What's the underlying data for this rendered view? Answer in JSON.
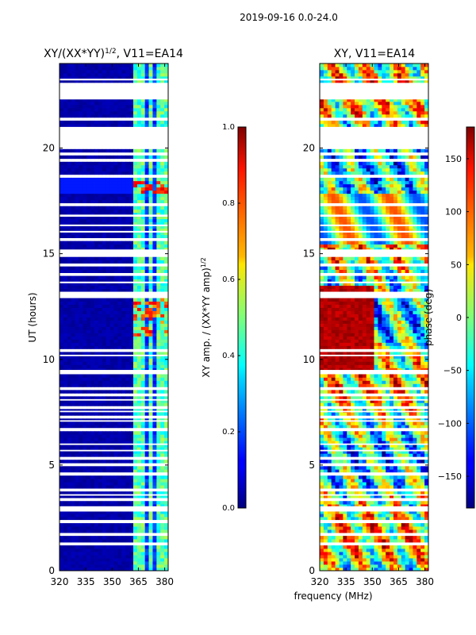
{
  "figure": {
    "suptitle": "2019-09-16 0.0-24.0",
    "shared_xlabel": "frequency (MHz)"
  },
  "chart_data": [
    {
      "type": "heatmap",
      "title_text": "XY/(XX*YY)",
      "title_sup": "1/2",
      "title_suffix": ", V11=EA14",
      "xlabel": "frequency (MHz)",
      "ylabel": "UT (hours)",
      "xlim": [
        320,
        382
      ],
      "ylim": [
        0,
        24
      ],
      "xticks": [
        320,
        335,
        350,
        365,
        380
      ],
      "yticks": [
        0,
        5,
        10,
        15,
        20
      ],
      "colorbar": {
        "label_text": "XY amp. / (XX*YY amp)",
        "label_sup": "1/2",
        "range": [
          0.0,
          1.0
        ],
        "ticks": [
          "0.0",
          "0.2",
          "0.4",
          "0.6",
          "0.8",
          "1.0"
        ],
        "colormap": "jet"
      }
    },
    {
      "type": "heatmap",
      "title_text": "XY, V11=EA14",
      "xlabel": "frequency (MHz)",
      "ylabel": "",
      "xlim": [
        320,
        382
      ],
      "ylim": [
        0,
        24
      ],
      "xticks": [
        320,
        335,
        350,
        365,
        380
      ],
      "yticks": [
        0,
        5,
        10,
        15,
        20
      ],
      "colorbar": {
        "label_text": "phase (deg)",
        "range": [
          -180,
          180
        ],
        "ticks": [
          "150",
          "100",
          "50",
          "0",
          "−50",
          "−100",
          "−150"
        ],
        "tick_values": [
          150,
          100,
          50,
          0,
          -50,
          -100,
          -150
        ],
        "colormap": "jet"
      }
    }
  ],
  "data_gaps_hours": [
    [
      1.2,
      1.3
    ],
    [
      1.65,
      1.75
    ],
    [
      2.3,
      2.4
    ],
    [
      2.8,
      3.05
    ],
    [
      3.3,
      3.38
    ],
    [
      3.55,
      3.62
    ],
    [
      3.8,
      3.87
    ],
    [
      4.55,
      4.65
    ],
    [
      4.95,
      5.05
    ],
    [
      5.3,
      5.37
    ],
    [
      5.65,
      5.72
    ],
    [
      5.95,
      6.02
    ],
    [
      6.65,
      6.75
    ],
    [
      7.05,
      7.12
    ],
    [
      7.25,
      7.32
    ],
    [
      7.5,
      7.57
    ],
    [
      7.7,
      7.77
    ],
    [
      8.05,
      8.12
    ],
    [
      8.3,
      8.37
    ],
    [
      8.6,
      8.67
    ],
    [
      9.3,
      9.5
    ],
    [
      10.15,
      10.22
    ],
    [
      10.4,
      10.47
    ],
    [
      12.9,
      13.0
    ],
    [
      13.1,
      13.2
    ],
    [
      13.6,
      13.68
    ],
    [
      14.0,
      14.08
    ],
    [
      14.4,
      14.48
    ],
    [
      14.85,
      14.95
    ],
    [
      15.0,
      15.2
    ],
    [
      15.65,
      15.73
    ],
    [
      16.0,
      16.08
    ],
    [
      16.3,
      16.38
    ],
    [
      16.75,
      16.85
    ],
    [
      17.3,
      17.38
    ],
    [
      18.6,
      18.68
    ],
    [
      19.4,
      19.48
    ],
    [
      19.7,
      19.78
    ],
    [
      20.0,
      20.1
    ],
    [
      20.15,
      21.0
    ],
    [
      21.3,
      21.38
    ],
    [
      22.3,
      22.9
    ],
    [
      23.0,
      23.08
    ],
    [
      23.2,
      23.28
    ]
  ]
}
